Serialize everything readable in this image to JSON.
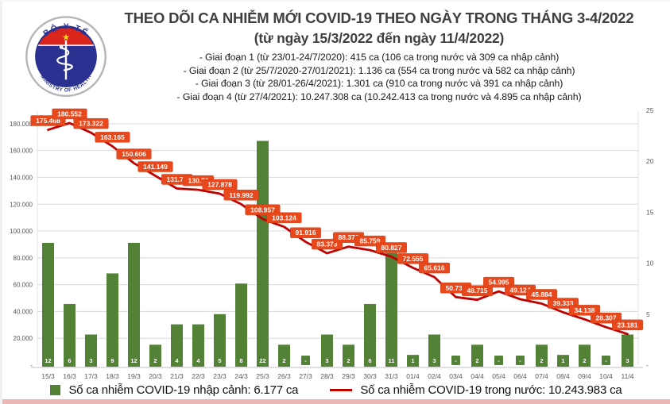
{
  "header": {
    "title": "THEO DÕI CA NHIỄM MỚI COVID-19 THEO NGÀY TRONG THÁNG 3-4/2022",
    "subtitle": "(từ ngày 15/3/2022 đến ngày 11/4/2022)",
    "phases": [
      "- Giai đoạn 1 (từ 23/01-24/7/2020): 415 ca (106 ca trong nước và 309 ca nhập cảnh)",
      "- Giai đoạn 2 (từ 25/7/2020-27/01/2021): 1.136 ca (554 ca trong nước và 582 ca nhập cảnh)",
      "- Giai đoạn 3 (từ 28/01-26/4/2021): 1.301 ca (910 ca trong nước và 391 ca nhập cảnh)",
      "- Giai đoạn 4 (từ 27/4/2021): 10.247.308 ca (10.242.413 ca trong nước và 4.895 ca nhập cảnh)"
    ],
    "logo": {
      "top_text": "BỘ Y TẾ",
      "bottom_text": "MINISTRY OF HEALTH"
    }
  },
  "chart_data": {
    "type": "combo-bar-line",
    "categories": [
      "15/3",
      "16/3",
      "17/3",
      "18/3",
      "19/3",
      "20/3",
      "21/3",
      "22/3",
      "23/3",
      "24/3",
      "25/3",
      "26/3",
      "27/3",
      "28/3",
      "29/3",
      "30/3",
      "31/3",
      "01/4",
      "02/4",
      "03/4",
      "04/4",
      "05/4",
      "06/4",
      "07/4",
      "08/4",
      "09/4",
      "10/4",
      "11/4"
    ],
    "series": [
      {
        "name": "Số ca nhiễm COVID-19 nhập cảnh: 6.177 ca",
        "type": "bar",
        "axis": "right",
        "color": "#538135",
        "labels": [
          "12",
          "6",
          "3",
          "9",
          "12",
          "2",
          "4",
          "4",
          "5",
          "8",
          "22",
          "2",
          "-",
          "3",
          "2",
          "6",
          "11",
          "1",
          "3",
          "-",
          "2",
          "-",
          "-",
          "2",
          "1",
          "2",
          "-",
          "3"
        ],
        "values": [
          12,
          6,
          3,
          9,
          12,
          2,
          4,
          4,
          5,
          8,
          22,
          2,
          0,
          3,
          2,
          6,
          11,
          1,
          3,
          0,
          2,
          0,
          0,
          2,
          1,
          2,
          0,
          3
        ]
      },
      {
        "name": "Số ca nhiễm COVID-19 trong nước: 10.243.983 ca",
        "type": "line",
        "axis": "left",
        "color": "#c00000",
        "label_bg": "#e8481c",
        "labels": [
          "175.468",
          "180.552",
          "173.322",
          "163.165",
          "150.606",
          "141.149",
          "131.70",
          "130.73",
          "127.878",
          "119.992",
          "108.957",
          "103.124",
          "91.916",
          "83.373",
          "88.376",
          "85.759",
          "80.827",
          "72.555",
          "65.616",
          "50.730",
          "48.715",
          "54.995",
          "49.124",
          "45.884",
          "39.333",
          "34.138",
          "28.307",
          "23.181"
        ],
        "values": [
          175468,
          180552,
          173322,
          163165,
          150606,
          141149,
          131700,
          130730,
          127878,
          119992,
          108957,
          103124,
          91916,
          83373,
          88376,
          85759,
          80827,
          72555,
          65616,
          50730,
          48715,
          54995,
          49124,
          45884,
          39333,
          34138,
          28307,
          23181
        ]
      }
    ],
    "left_axis": {
      "min": 0,
      "max": 190000,
      "tick_step": 20000,
      "tick_labels": [
        "-",
        "20.000",
        "40.000",
        "60.000",
        "80.000",
        "100.000",
        "120.000",
        "140.000",
        "160.000",
        "180.000"
      ]
    },
    "right_axis": {
      "min": 0,
      "max": 25,
      "tick_step": 5,
      "tick_labels": [
        "-",
        "5",
        "10",
        "15",
        "20",
        "25"
      ]
    },
    "grid": "horizontal",
    "gridline_color": "#d9d9d9",
    "axis_text_color": "#595959",
    "legend_position": "bottom"
  }
}
